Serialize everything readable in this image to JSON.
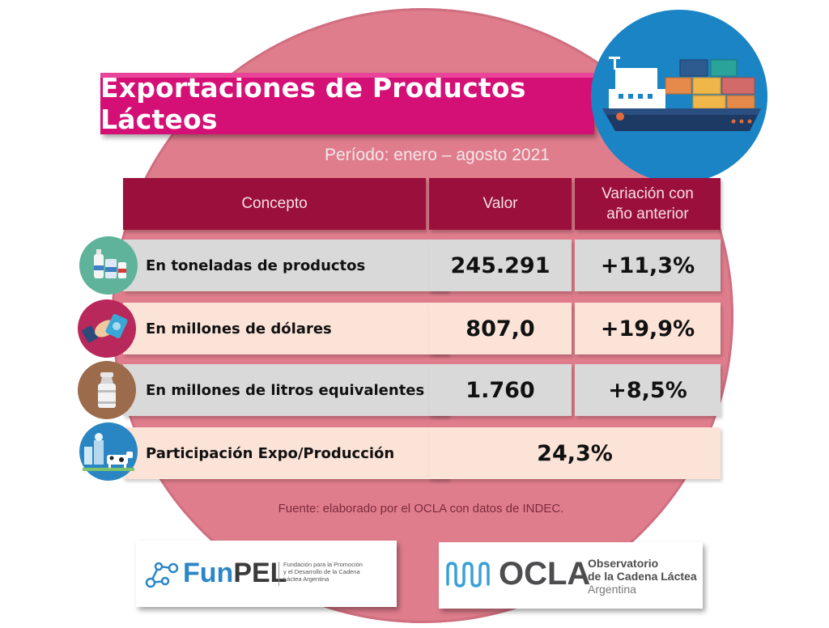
{
  "title": "Exportaciones de Productos Lácteos",
  "period": "Período: enero – agosto 2021",
  "table": {
    "headers": {
      "concepto": "Concepto",
      "valor": "Valor",
      "variacion_line1": "Variación con",
      "variacion_line2": "año anterior"
    },
    "rows": [
      {
        "concepto": "En toneladas de productos",
        "valor": "245.291",
        "variacion": "+11,3%",
        "icon": "dairy-products-icon"
      },
      {
        "concepto": "En millones de dólares",
        "valor": "807,0",
        "variacion": "+19,9%",
        "icon": "money-hand-icon"
      },
      {
        "concepto": "En millones de litros equivalentes",
        "valor": "1.760",
        "variacion": "+8,5%",
        "icon": "milk-can-icon"
      },
      {
        "concepto": "Participación Expo/Producción",
        "valor": "24,3%",
        "icon": "dairy-farm-icon"
      }
    ]
  },
  "source": "Fuente: elaborado por el OCLA con datos de INDEC.",
  "logos": {
    "funpel": {
      "name_a": "Fun",
      "name_b": "PEL",
      "tagline_1": "Fundación para la Promoción",
      "tagline_2": "y el Desarrollo de la Cadena",
      "tagline_3": "Láctea Argentina"
    },
    "ocla": {
      "name": "OCLA",
      "line1": "Observatorio",
      "line2": "de la Cadena Láctea",
      "line3": "Argentina"
    }
  },
  "colors": {
    "banner": "#d40f75",
    "header": "#9b0f3c",
    "circle": "#e07d8c",
    "ship_bg": "#1a84c4"
  }
}
